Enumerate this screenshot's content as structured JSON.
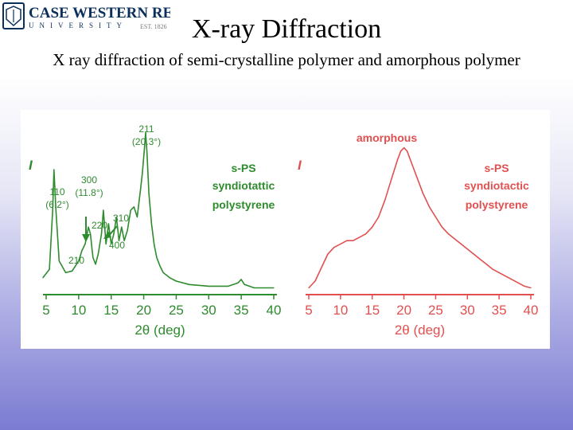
{
  "logo": {
    "name": "CASE WESTERN RESERVE",
    "sub": "UNIVERSITY",
    "est": "EST. 1826",
    "colors": {
      "navy": "#0a2f5c",
      "gray": "#7a7a7a"
    }
  },
  "slide": {
    "title": "X-ray Diffraction",
    "subtitle": "X ray diffraction of semi-crystalline polymer and amorphous polymer"
  },
  "chart_data": [
    {
      "type": "line",
      "color": "#2e8b2e",
      "ylabel": "I",
      "xlabel": "2θ (deg)",
      "xticks": [
        5,
        10,
        15,
        20,
        25,
        30,
        35,
        40
      ],
      "xlim": [
        5,
        40
      ],
      "legend": [
        "s-PS",
        "syndiotattic",
        "polystyrene"
      ],
      "annotations": [
        {
          "lines": [
            "211",
            "(20.3°)"
          ],
          "x": 20.3
        },
        {
          "lines": [
            "300",
            "(11.8°)"
          ],
          "x": 11.8,
          "arrow": true
        },
        {
          "lines": [
            "110",
            "(6.2°)"
          ],
          "x": 6.2
        },
        {
          "lines": [
            "220"
          ],
          "x": 13.8
        },
        {
          "lines": [
            "310"
          ],
          "x": 14.8,
          "arrow": true
        },
        {
          "lines": [
            "400"
          ],
          "x": 16.0
        },
        {
          "lines": [
            "210"
          ],
          "x": 10.0
        }
      ],
      "x": [
        4.5,
        5.5,
        6.0,
        6.2,
        6.5,
        7.0,
        8.0,
        9.0,
        10.0,
        10.5,
        11.0,
        11.5,
        11.8,
        12.2,
        12.6,
        13.0,
        13.5,
        13.8,
        14.2,
        14.6,
        15.0,
        15.4,
        15.8,
        16.2,
        16.6,
        17.0,
        17.5,
        18.0,
        18.5,
        19.0,
        19.5,
        19.8,
        20.1,
        20.3,
        20.5,
        20.8,
        21.2,
        21.6,
        22.0,
        22.5,
        23.0,
        24.0,
        25.0,
        27.0,
        30.0,
        33.0,
        34.5,
        35.0,
        35.5,
        37.0,
        40.0
      ],
      "y": [
        0.1,
        0.15,
        0.5,
        0.74,
        0.5,
        0.2,
        0.13,
        0.14,
        0.2,
        0.26,
        0.3,
        0.4,
        0.36,
        0.22,
        0.18,
        0.24,
        0.36,
        0.5,
        0.3,
        0.42,
        0.3,
        0.36,
        0.46,
        0.32,
        0.4,
        0.32,
        0.38,
        0.5,
        0.52,
        0.46,
        0.62,
        0.72,
        0.86,
        0.96,
        0.84,
        0.6,
        0.42,
        0.3,
        0.22,
        0.17,
        0.13,
        0.1,
        0.08,
        0.06,
        0.05,
        0.05,
        0.07,
        0.09,
        0.06,
        0.04,
        0.04
      ]
    },
    {
      "type": "line",
      "color": "#e05050",
      "ylabel": "I",
      "xlabel": "2θ (deg)",
      "xticks": [
        5,
        10,
        15,
        20,
        25,
        30,
        35,
        40
      ],
      "xlim": [
        5,
        40
      ],
      "title": "amorphous",
      "legend": [
        "s-PS",
        "syndiotactic",
        "polystyrene"
      ],
      "x": [
        5,
        6,
        7,
        8,
        9,
        10,
        11,
        12,
        13,
        14,
        15,
        16,
        17,
        18,
        19,
        19.5,
        20,
        20.5,
        21,
        22,
        23,
        24,
        25,
        26,
        27,
        28,
        29,
        30,
        31,
        32,
        33,
        34,
        35,
        36,
        37,
        38,
        39,
        40
      ],
      "y": [
        0.04,
        0.08,
        0.16,
        0.24,
        0.28,
        0.3,
        0.32,
        0.32,
        0.34,
        0.36,
        0.4,
        0.46,
        0.56,
        0.68,
        0.8,
        0.85,
        0.87,
        0.85,
        0.8,
        0.7,
        0.6,
        0.52,
        0.46,
        0.4,
        0.36,
        0.33,
        0.3,
        0.27,
        0.24,
        0.21,
        0.18,
        0.15,
        0.13,
        0.11,
        0.09,
        0.07,
        0.05,
        0.04
      ]
    }
  ]
}
